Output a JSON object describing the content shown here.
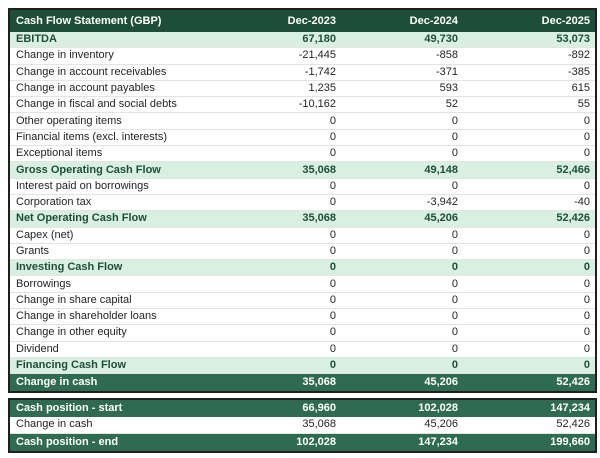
{
  "chart_data": {
    "type": "table",
    "title": "Cash Flow Statement (GBP)",
    "columns": [
      "Dec-2023",
      "Dec-2024",
      "Dec-2025"
    ],
    "rows": [
      {
        "label": "EBITDA",
        "values": [
          "67,180",
          "49,730",
          "53,073"
        ],
        "style": "section"
      },
      {
        "label": "Change in inventory",
        "values": [
          "-21,445",
          "-858",
          "-892"
        ],
        "style": "normal"
      },
      {
        "label": "Change in account receivables",
        "values": [
          "-1,742",
          "-371",
          "-385"
        ],
        "style": "normal"
      },
      {
        "label": "Change in account payables",
        "values": [
          "1,235",
          "593",
          "615"
        ],
        "style": "normal"
      },
      {
        "label": "Change in fiscal and social debts",
        "values": [
          "-10,162",
          "52",
          "55"
        ],
        "style": "normal"
      },
      {
        "label": "Other operating items",
        "values": [
          "0",
          "0",
          "0"
        ],
        "style": "normal"
      },
      {
        "label": "Financial items (excl. interests)",
        "values": [
          "0",
          "0",
          "0"
        ],
        "style": "normal"
      },
      {
        "label": "Exceptional items",
        "values": [
          "0",
          "0",
          "0"
        ],
        "style": "normal"
      },
      {
        "label": "Gross Operating Cash Flow",
        "values": [
          "35,068",
          "49,148",
          "52,466"
        ],
        "style": "section"
      },
      {
        "label": "Interest paid on borrowings",
        "values": [
          "0",
          "0",
          "0"
        ],
        "style": "normal"
      },
      {
        "label": "Corporation tax",
        "values": [
          "0",
          "-3,942",
          "-40"
        ],
        "style": "normal"
      },
      {
        "label": "Net Operating Cash Flow",
        "values": [
          "35,068",
          "45,206",
          "52,426"
        ],
        "style": "section"
      },
      {
        "label": "Capex (net)",
        "values": [
          "0",
          "0",
          "0"
        ],
        "style": "normal"
      },
      {
        "label": "Grants",
        "values": [
          "0",
          "0",
          "0"
        ],
        "style": "normal"
      },
      {
        "label": "Investing Cash Flow",
        "values": [
          "0",
          "0",
          "0"
        ],
        "style": "section"
      },
      {
        "label": "Borrowings",
        "values": [
          "0",
          "0",
          "0"
        ],
        "style": "normal"
      },
      {
        "label": "Change in share capital",
        "values": [
          "0",
          "0",
          "0"
        ],
        "style": "normal"
      },
      {
        "label": "Change in shareholder loans",
        "values": [
          "0",
          "0",
          "0"
        ],
        "style": "normal"
      },
      {
        "label": "Change in other equity",
        "values": [
          "0",
          "0",
          "0"
        ],
        "style": "normal"
      },
      {
        "label": "Dividend",
        "values": [
          "0",
          "0",
          "0"
        ],
        "style": "normal"
      },
      {
        "label": "Financing Cash Flow",
        "values": [
          "0",
          "0",
          "0"
        ],
        "style": "section"
      },
      {
        "label": "Change in cash",
        "values": [
          "35,068",
          "45,206",
          "52,426"
        ],
        "style": "summary"
      }
    ],
    "footer_rows": [
      {
        "label": "Cash position - start",
        "values": [
          "66,960",
          "102,028",
          "147,234"
        ],
        "style": "summary"
      },
      {
        "label": "Change in cash",
        "values": [
          "35,068",
          "45,206",
          "52,426"
        ],
        "style": "normal"
      },
      {
        "label": "Cash position - end",
        "values": [
          "102,028",
          "147,234",
          "199,660"
        ],
        "style": "summary"
      }
    ]
  },
  "colors": {
    "header_bg": "#1e4e3a",
    "summary_bg": "#2f6b53",
    "section_bg": "#d9efe2",
    "section_text": "#1e4e3a",
    "body_text": "#222426",
    "row_border": "#e4e4e4",
    "outer_border": "#1f1f1f",
    "header_text": "#ffffff",
    "summary_text": "#ffffff"
  }
}
